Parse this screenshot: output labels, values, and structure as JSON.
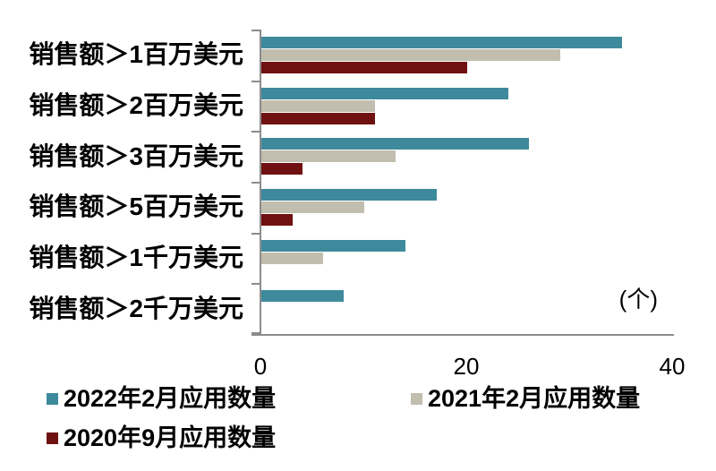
{
  "chart_data": {
    "type": "bar",
    "orientation": "horizontal",
    "title": "",
    "categories": [
      "销售额＞1百万美元",
      "销售额＞2百万美元",
      "销售额＞3百万美元",
      "销售额＞5百万美元",
      "销售额＞1千万美元",
      "销售额＞2千万美元"
    ],
    "series": [
      {
        "name": "2022年2月应用数量",
        "color": "#3E8A9C",
        "values": [
          35,
          24,
          26,
          17,
          14,
          8
        ]
      },
      {
        "name": "2021年2月应用数量",
        "color": "#C1BEAF",
        "values": [
          29,
          11,
          13,
          10,
          6,
          0
        ]
      },
      {
        "name": "2020年9月应用数量",
        "color": "#701111",
        "values": [
          20,
          11,
          4,
          3,
          0,
          0
        ]
      }
    ],
    "xlim": [
      0,
      40
    ],
    "xticks": [
      "0",
      "20",
      "40"
    ],
    "unit_label": "(个)",
    "legend_position": "bottom-left",
    "grid": false,
    "axis_color": "#8C8C8C",
    "background_color": "#FFFFFF"
  }
}
